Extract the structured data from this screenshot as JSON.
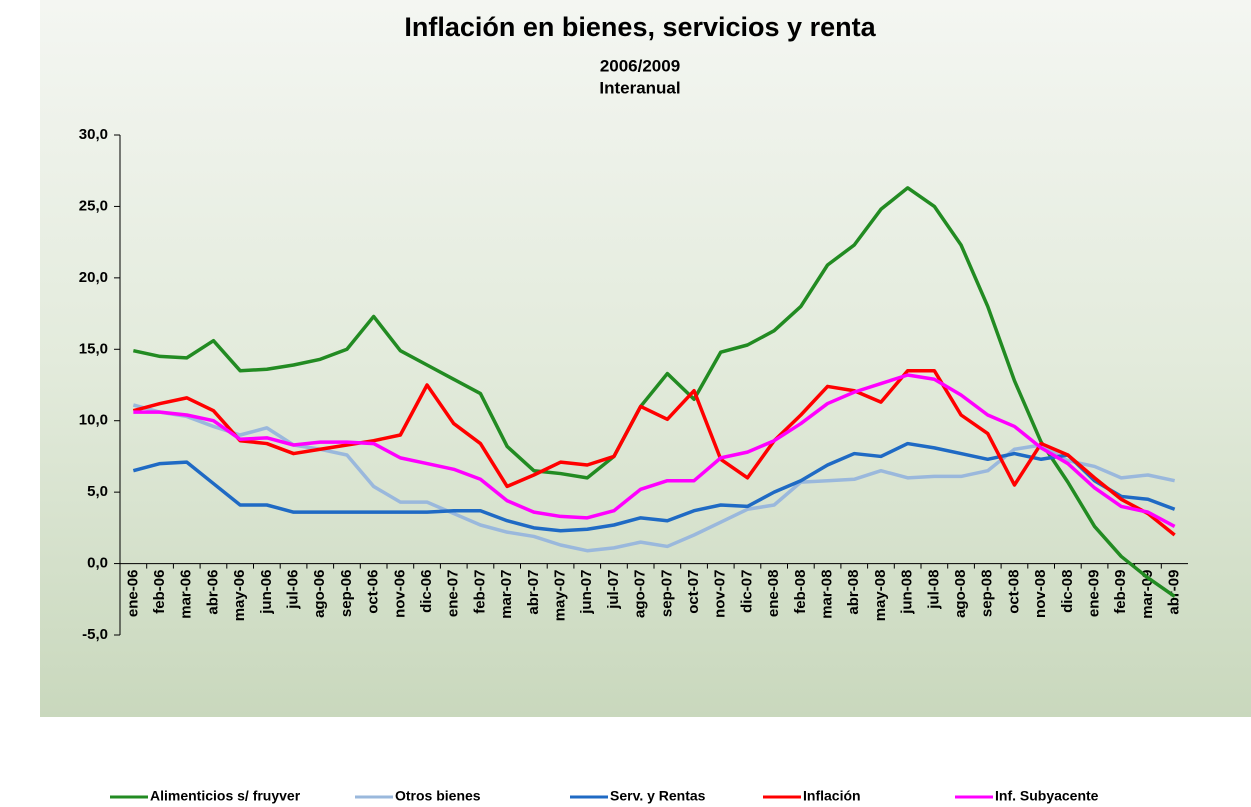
{
  "chart_data": {
    "type": "line",
    "title": "Inflación en bienes, servicios y renta",
    "subtitle": [
      "2006/2009",
      "Interanual"
    ],
    "categories": [
      "ene-06",
      "feb-06",
      "mar-06",
      "abr-06",
      "may-06",
      "jun-06",
      "jul-06",
      "ago-06",
      "sep-06",
      "oct-06",
      "nov-06",
      "dic-06",
      "ene-07",
      "feb-07",
      "mar-07",
      "abr-07",
      "may-07",
      "jun-07",
      "jul-07",
      "ago-07",
      "sep-07",
      "oct-07",
      "nov-07",
      "dic-07",
      "ene-08",
      "feb-08",
      "mar-08",
      "abr-08",
      "may-08",
      "jun-08",
      "jul-08",
      "ago-08",
      "sep-08",
      "oct-08",
      "nov-08",
      "dic-08",
      "ene-09",
      "feb-09",
      "mar-09",
      "abr-09"
    ],
    "series": [
      {
        "name": "Alimenticios s/ fruyver",
        "color": "#228b22",
        "values": [
          14.9,
          14.5,
          14.4,
          15.6,
          13.5,
          13.6,
          13.9,
          14.3,
          15.0,
          17.3,
          14.9,
          13.9,
          12.9,
          11.9,
          8.2,
          6.5,
          6.3,
          6.0,
          7.5,
          11.0,
          13.3,
          11.5,
          14.8,
          15.3,
          16.3,
          18.0,
          20.9,
          22.3,
          24.8,
          26.3,
          25.0,
          22.3,
          18.0,
          12.8,
          8.5,
          5.7,
          2.6,
          0.5,
          -1.0,
          -2.3
        ]
      },
      {
        "name": "Otros bienes",
        "color": "#9ab8dc",
        "values": [
          11.1,
          10.6,
          10.3,
          9.6,
          9.0,
          9.5,
          8.3,
          8.0,
          7.6,
          5.4,
          4.3,
          4.3,
          3.5,
          2.7,
          2.2,
          1.9,
          1.3,
          0.9,
          1.1,
          1.5,
          1.2,
          2.0,
          2.9,
          3.8,
          4.1,
          5.7,
          5.8,
          5.9,
          6.5,
          6.0,
          6.1,
          6.1,
          6.5,
          8.0,
          8.3,
          7.2,
          6.8,
          6.0,
          6.2,
          5.8
        ]
      },
      {
        "name": "Serv. y Rentas",
        "color": "#1f6ac4",
        "values": [
          6.5,
          7.0,
          7.1,
          5.6,
          4.1,
          4.1,
          3.6,
          3.6,
          3.6,
          3.6,
          3.6,
          3.6,
          3.7,
          3.7,
          3.0,
          2.5,
          2.3,
          2.4,
          2.7,
          3.2,
          3.0,
          3.7,
          4.1,
          4.0,
          5.0,
          5.8,
          6.9,
          7.7,
          7.5,
          8.4,
          8.1,
          7.7,
          7.3,
          7.7,
          7.3,
          7.6,
          5.8,
          4.7,
          4.5,
          3.8
        ]
      },
      {
        "name": "Inflación",
        "color": "#ff0000",
        "values": [
          10.7,
          11.2,
          11.6,
          10.7,
          8.6,
          8.4,
          7.7,
          8.0,
          8.3,
          8.6,
          9.0,
          12.5,
          9.8,
          8.4,
          5.4,
          6.2,
          7.1,
          6.9,
          7.5,
          11.0,
          10.1,
          12.1,
          7.3,
          6.0,
          8.6,
          10.4,
          12.4,
          12.1,
          11.3,
          13.5,
          13.5,
          10.4,
          9.1,
          5.5,
          8.4,
          7.6,
          6.0,
          4.5,
          3.5,
          2.0
        ]
      },
      {
        "name": "Inf. Subyacente",
        "color": "#ff00ff",
        "values": [
          10.6,
          10.6,
          10.4,
          10.0,
          8.7,
          8.8,
          8.3,
          8.5,
          8.5,
          8.4,
          7.4,
          7.0,
          6.6,
          5.9,
          4.4,
          3.6,
          3.3,
          3.2,
          3.7,
          5.2,
          5.8,
          5.8,
          7.4,
          7.8,
          8.6,
          9.8,
          11.2,
          12.0,
          12.6,
          13.2,
          12.9,
          11.8,
          10.4,
          9.6,
          8.1,
          7.0,
          5.3,
          4.0,
          3.6,
          2.6
        ]
      }
    ],
    "ylim": [
      -5,
      30
    ],
    "yticks": [
      {
        "value": -5,
        "label": "-5,0"
      },
      {
        "value": 0,
        "label": "0,0"
      },
      {
        "value": 5,
        "label": "5,0"
      },
      {
        "value": 10,
        "label": "10,0"
      },
      {
        "value": 15,
        "label": "15,0"
      },
      {
        "value": 20,
        "label": "20,0"
      },
      {
        "value": 25,
        "label": "25,0"
      },
      {
        "value": 30,
        "label": "30,0"
      }
    ],
    "grid": false,
    "legend": "bottom"
  }
}
